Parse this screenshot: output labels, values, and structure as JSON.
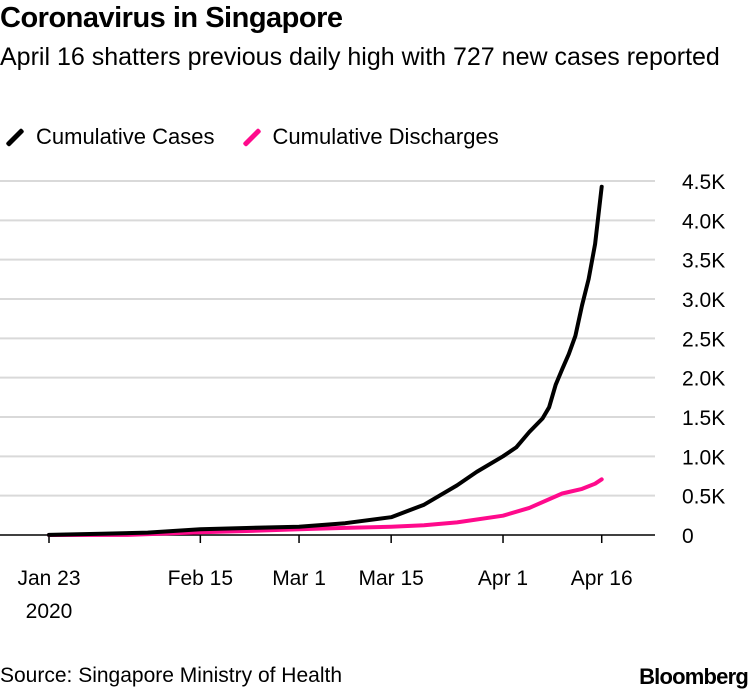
{
  "chart_data": {
    "type": "line",
    "title": "Coronavirus in Singapore",
    "subtitle": "April 16 shatters previous daily high with 727 new cases reported",
    "xlabel": "",
    "ylabel": "",
    "ylim": [
      0,
      4500
    ],
    "yticks": [
      0,
      500,
      1000,
      1500,
      2000,
      2500,
      3000,
      3500,
      4000,
      4500
    ],
    "ytick_labels": [
      "0",
      "0.5K",
      "1.0K",
      "1.5K",
      "2.0K",
      "2.5K",
      "3.0K",
      "3.5K",
      "4.0K",
      "4.5K"
    ],
    "xticks": [
      "2020-01-23",
      "2020-02-15",
      "2020-03-01",
      "2020-03-15",
      "2020-04-01",
      "2020-04-16"
    ],
    "xtick_labels": [
      "Jan 23",
      "Feb 15",
      "Mar 1",
      "Mar 15",
      "Apr 1",
      "Apr 16"
    ],
    "xtick_year": "2020",
    "xlim": [
      "2020-01-23",
      "2020-04-21"
    ],
    "grid": true,
    "legend_position": "top-left",
    "series": [
      {
        "name": "Cumulative Cases",
        "color": "#000000",
        "x": [
          "2020-01-23",
          "2020-01-31",
          "2020-02-07",
          "2020-02-15",
          "2020-02-22",
          "2020-03-01",
          "2020-03-08",
          "2020-03-15",
          "2020-03-20",
          "2020-03-25",
          "2020-03-28",
          "2020-04-01",
          "2020-04-03",
          "2020-04-05",
          "2020-04-07",
          "2020-04-08",
          "2020-04-09",
          "2020-04-10",
          "2020-04-11",
          "2020-04-12",
          "2020-04-13",
          "2020-04-14",
          "2020-04-15",
          "2020-04-16"
        ],
        "values": [
          1,
          16,
          30,
          72,
          89,
          106,
          150,
          226,
          385,
          631,
          802,
          1000,
          1114,
          1309,
          1481,
          1623,
          1910,
          2108,
          2299,
          2532,
          2918,
          3252,
          3699,
          4427
        ]
      },
      {
        "name": "Cumulative Discharges",
        "color": "#ff0a8c",
        "x": [
          "2020-01-23",
          "2020-02-04",
          "2020-02-15",
          "2020-02-22",
          "2020-03-01",
          "2020-03-08",
          "2020-03-15",
          "2020-03-20",
          "2020-03-25",
          "2020-04-01",
          "2020-04-05",
          "2020-04-10",
          "2020-04-13",
          "2020-04-15",
          "2020-04-16"
        ],
        "values": [
          0,
          1,
          34,
          51,
          72,
          90,
          105,
          124,
          160,
          245,
          344,
          528,
          586,
          652,
          708
        ]
      }
    ]
  },
  "source": "Source: Singapore Ministry of Health",
  "logo": "Bloomberg"
}
